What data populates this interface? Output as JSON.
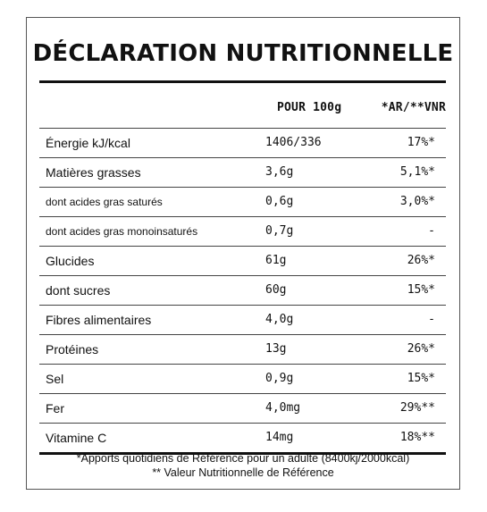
{
  "title": "DÉCLARATION NUTRITIONNELLE",
  "headers": {
    "per100": "POUR 100g",
    "arvnr": "*AR/**VNR"
  },
  "rows": [
    {
      "label": "Énergie kJ/kcal",
      "value": "1406/336",
      "pct": "17%*",
      "small": false
    },
    {
      "label": "Matières grasses",
      "value": "3,6g",
      "pct": "5,1%*",
      "small": false
    },
    {
      "label": "dont acides gras saturés",
      "value": "0,6g",
      "pct": "3,0%*",
      "small": true
    },
    {
      "label": "dont acides gras monoinsaturés",
      "value": "0,7g",
      "pct": "-",
      "small": true
    },
    {
      "label": "Glucides",
      "value": "61g",
      "pct": "26%*",
      "small": false
    },
    {
      "label": "dont sucres",
      "value": "60g",
      "pct": "15%*",
      "small": false
    },
    {
      "label": "Fibres alimentaires",
      "value": "4,0g",
      "pct": "-",
      "small": false
    },
    {
      "label": "Protéines",
      "value": "13g",
      "pct": "26%*",
      "small": false
    },
    {
      "label": "Sel",
      "value": "0,9g",
      "pct": "15%*",
      "small": false
    },
    {
      "label": "Fer",
      "value": "4,0mg",
      "pct": "29%**",
      "small": false
    },
    {
      "label": "Vitamine C",
      "value": "14mg",
      "pct": "18%**",
      "small": false
    }
  ],
  "footnotes": {
    "line1": "*Apports quotidiens de Référence pour un adulte (8400kj/2000kcal)",
    "line2": "** Valeur Nutritionnelle de Référence"
  }
}
